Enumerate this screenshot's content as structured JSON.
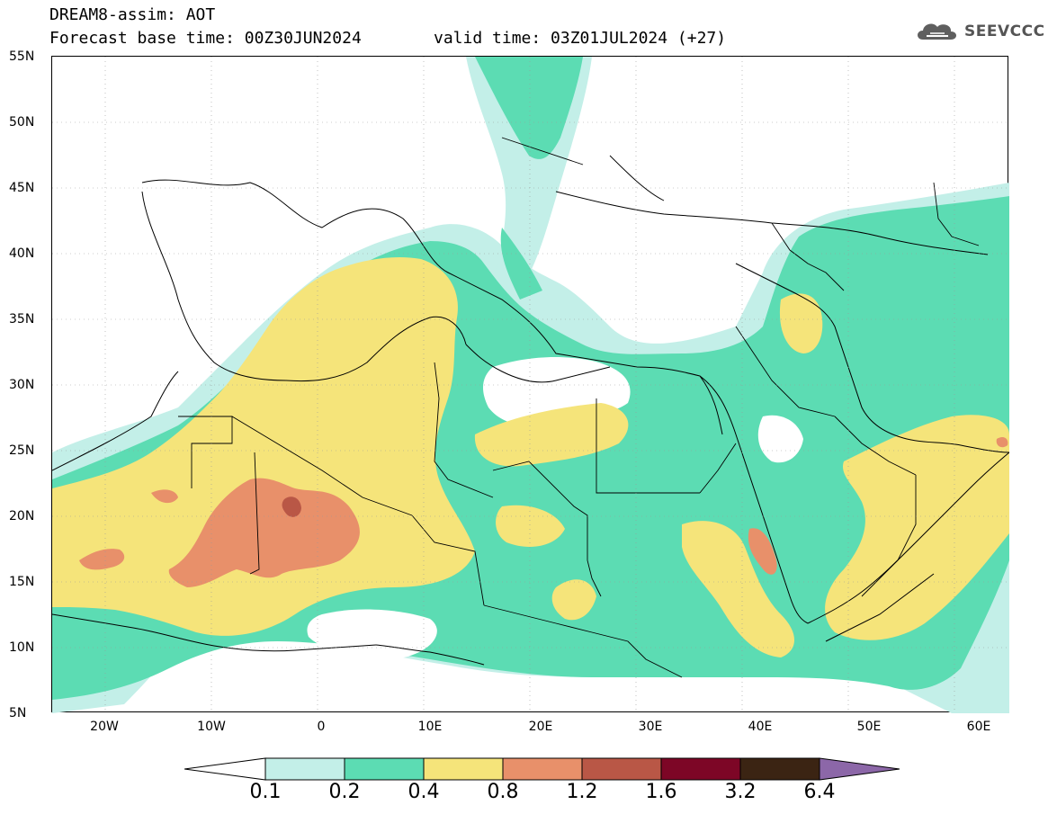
{
  "header": {
    "line1": "DREAM8-assim: AOT",
    "line2": "Forecast base time: 00Z30JUN2024",
    "valid_time": "valid time: 03Z01JUL2024 (+27)"
  },
  "logo": {
    "text": "SEEVCCC",
    "icon": "cloud-icon"
  },
  "map": {
    "lat_labels": [
      "55N",
      "50N",
      "45N",
      "40N",
      "35N",
      "30N",
      "25N",
      "20N",
      "15N",
      "10N",
      "5N"
    ],
    "lon_labels": [
      "20W",
      "10W",
      "0",
      "10E",
      "20E",
      "30E",
      "40E",
      "50E",
      "60E"
    ],
    "lat_range": [
      5,
      55
    ],
    "lon_range": [
      -25,
      65
    ]
  },
  "legend": {
    "levels": [
      "0.1",
      "0.2",
      "0.4",
      "0.8",
      "1.2",
      "1.6",
      "3.2",
      "6.4"
    ],
    "colors": [
      "#ffffff",
      "#c3efe8",
      "#5cdcb3",
      "#f5e47a",
      "#e8906a",
      "#b95746",
      "#7d0626",
      "#3b2413",
      "#8c67a8"
    ]
  }
}
